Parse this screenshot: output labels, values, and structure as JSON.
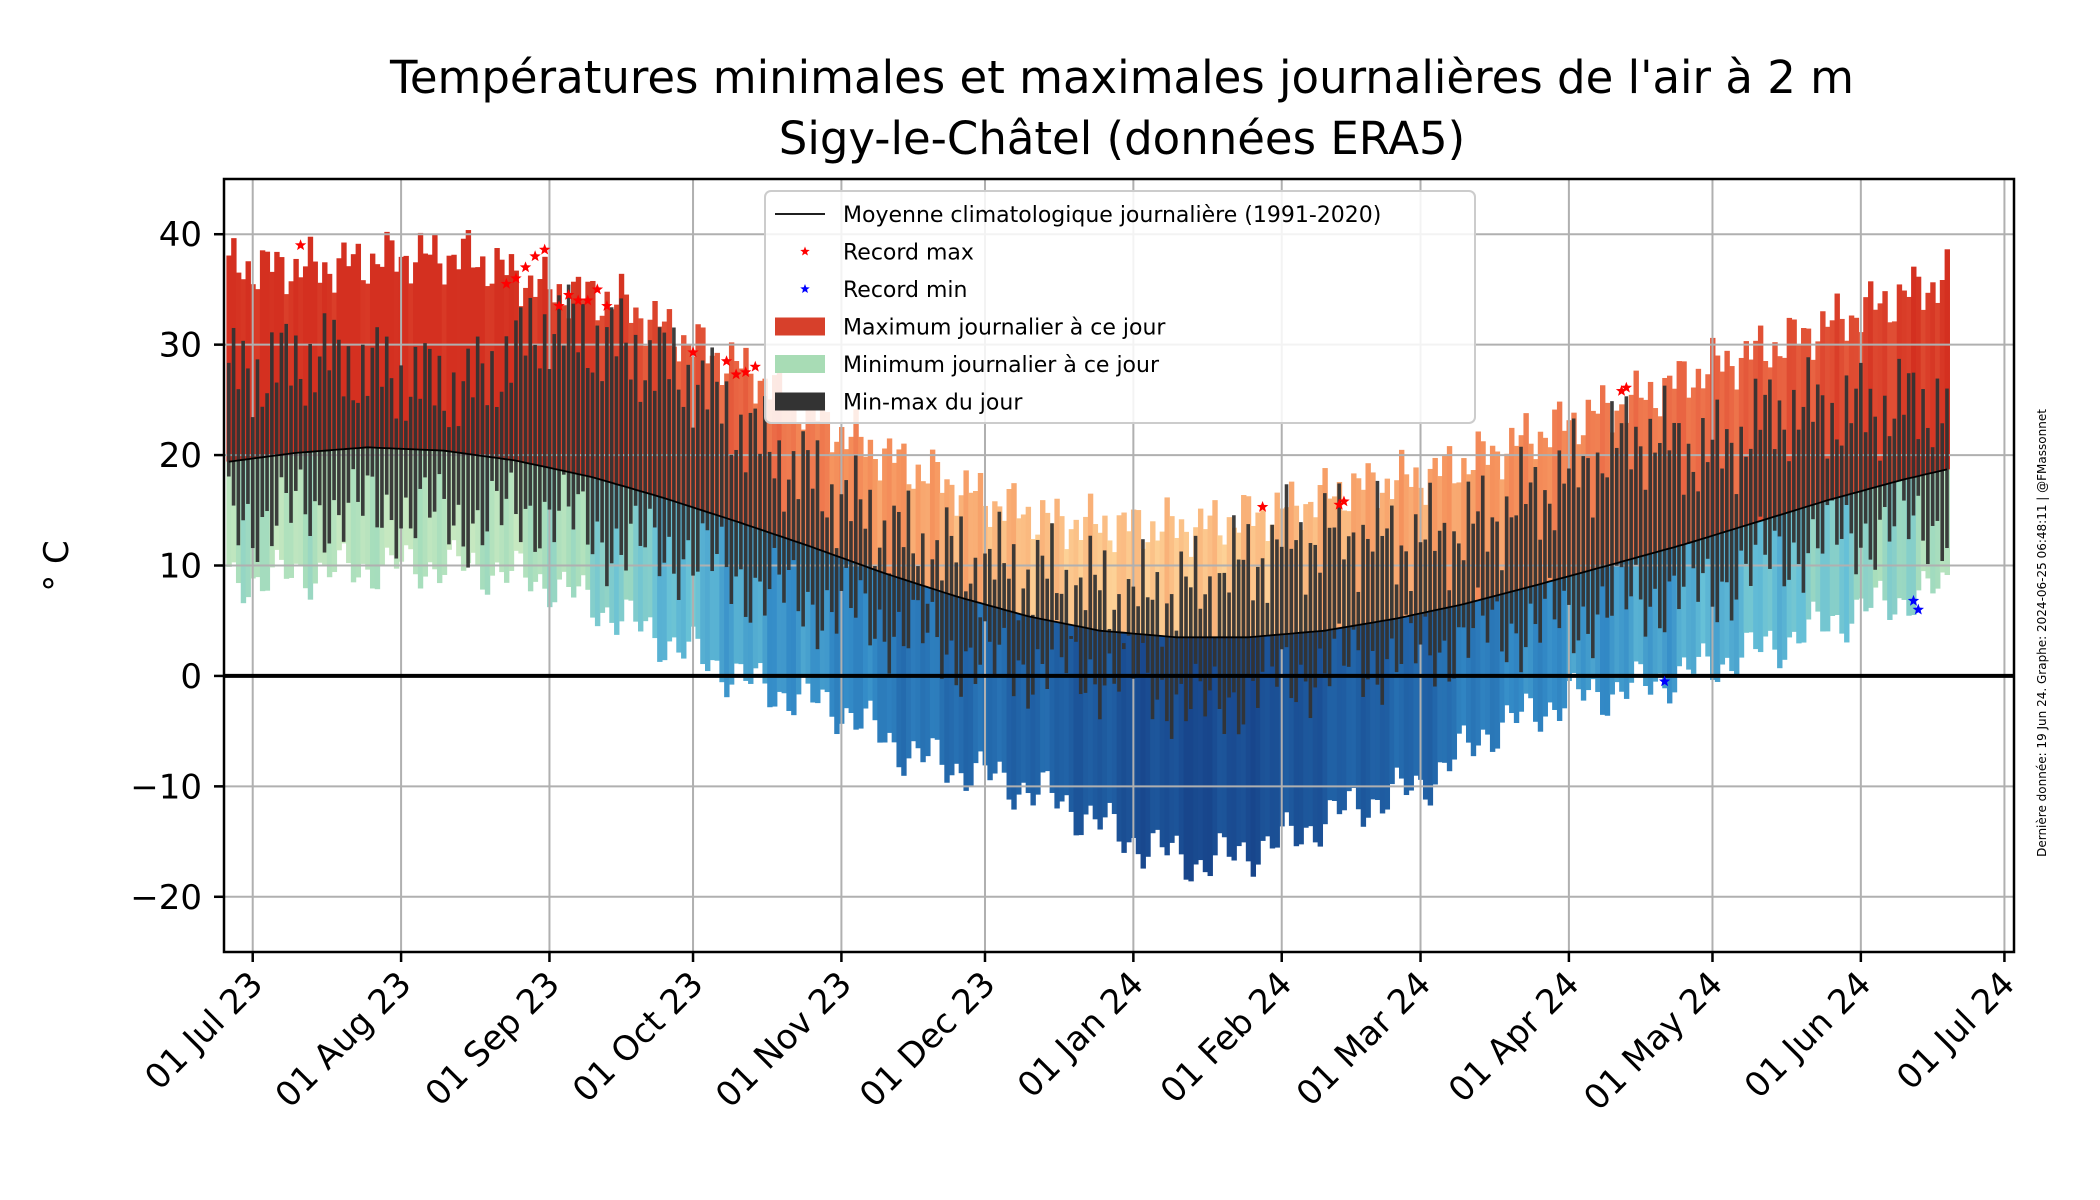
{
  "chart_data": {
    "type": "bar",
    "title": "Températures minimales et maximales journalières de l'air à 2 m",
    "subtitle": "Sigy-le-Châtel (données ERA5)",
    "ylabel": "° C",
    "ylim": [
      -25,
      45
    ],
    "yticks": [
      -20,
      -10,
      0,
      10,
      20,
      30,
      40
    ],
    "ytick_labels": [
      "−20",
      "−10",
      "0",
      "10",
      "20",
      "30",
      "40"
    ],
    "xlim": [
      "2023-06-25",
      "2024-07-03"
    ],
    "xticks": [
      "2023-07-01",
      "2023-08-01",
      "2023-09-01",
      "2023-10-01",
      "2023-11-01",
      "2023-12-01",
      "2024-01-01",
      "2024-02-01",
      "2024-03-01",
      "2024-04-01",
      "2024-05-01",
      "2024-06-01",
      "2024-07-01"
    ],
    "xtick_labels": [
      "01 Jul 23",
      "01 Aug 23",
      "01 Sep 23",
      "01 Oct 23",
      "01 Nov 23",
      "01 Dec 23",
      "01 Jan 24",
      "01 Feb 24",
      "01 Mar 24",
      "01 Apr 24",
      "01 May 24",
      "01 Jun 24",
      "01 Jul 24"
    ],
    "grid": true,
    "legend_position": "top-center",
    "legend": [
      {
        "label": "Moyenne climatologique journalière (1991-2020)",
        "kind": "line",
        "color": "#000000"
      },
      {
        "label": "Record max",
        "kind": "star",
        "color": "#ff0000"
      },
      {
        "label": "Record min",
        "kind": "star",
        "color": "#0000ff"
      },
      {
        "label": "Maximum journalier à ce jour",
        "kind": "patch",
        "color": "#d7402b"
      },
      {
        "label": "Minimum journalier à ce jour",
        "kind": "patch",
        "color": "#a8dcb5"
      },
      {
        "label": "Min-max du jour",
        "kind": "patch",
        "color": "#333333"
      }
    ],
    "credit": "Dernière donnée: 19 Jun 24. Graphe: 2024-06-25 06:48:11 | @FMassonnet",
    "period": {
      "start": "2023-06-26",
      "end": "2024-06-19"
    },
    "series": [
      {
        "name": "Moyenne climatologique journalière (1991-2020)",
        "type": "line",
        "x": [
          "2023-06-26",
          "2023-07-10",
          "2023-07-25",
          "2023-08-10",
          "2023-08-25",
          "2023-09-10",
          "2023-09-25",
          "2023-10-10",
          "2023-10-25",
          "2023-11-10",
          "2023-11-25",
          "2023-12-10",
          "2023-12-25",
          "2024-01-10",
          "2024-01-25",
          "2024-02-10",
          "2024-02-25",
          "2024-03-10",
          "2024-03-25",
          "2024-04-10",
          "2024-04-25",
          "2024-05-10",
          "2024-05-25",
          "2024-06-10",
          "2024-06-19"
        ],
        "values": [
          19.4,
          20.2,
          20.7,
          20.4,
          19.5,
          18.0,
          16.1,
          14.0,
          11.8,
          9.3,
          7.2,
          5.4,
          4.1,
          3.5,
          3.5,
          4.1,
          5.2,
          6.5,
          8.2,
          10.1,
          11.9,
          13.9,
          15.9,
          17.8,
          18.7
        ]
      },
      {
        "name": "Maximum journalier à ce jour",
        "type": "envelope",
        "x": [
          "2023-06-26",
          "2023-07-15",
          "2023-08-01",
          "2023-08-15",
          "2023-09-01",
          "2023-09-15",
          "2023-10-01",
          "2023-10-15",
          "2023-11-01",
          "2023-11-15",
          "2023-12-01",
          "2023-12-15",
          "2024-01-01",
          "2024-01-15",
          "2024-02-01",
          "2024-02-15",
          "2024-03-01",
          "2024-03-15",
          "2024-04-01",
          "2024-04-15",
          "2024-05-01",
          "2024-05-15",
          "2024-06-01",
          "2024-06-19"
        ],
        "values": [
          37,
          37,
          38,
          38,
          35,
          34,
          30,
          27,
          22,
          19,
          16,
          14,
          13.5,
          13.5,
          15,
          17,
          18,
          20,
          23,
          25,
          28,
          30,
          33,
          36
        ]
      },
      {
        "name": "Minimum journalier à ce jour",
        "type": "envelope",
        "x": [
          "2023-06-26",
          "2023-07-15",
          "2023-08-01",
          "2023-08-15",
          "2023-09-01",
          "2023-09-15",
          "2023-10-01",
          "2023-10-15",
          "2023-11-01",
          "2023-11-15",
          "2023-12-01",
          "2023-12-15",
          "2024-01-01",
          "2024-01-15",
          "2024-02-01",
          "2024-02-15",
          "2024-03-01",
          "2024-03-15",
          "2024-04-01",
          "2024-04-15",
          "2024-05-01",
          "2024-05-15",
          "2024-06-01",
          "2024-06-19"
        ],
        "values": [
          8.5,
          9.5,
          10,
          10,
          8.5,
          5.5,
          2,
          -1,
          -3,
          -7,
          -9,
          -11,
          -15,
          -17,
          -15,
          -12,
          -10,
          -5,
          -2,
          -1,
          1,
          3,
          6,
          8
        ]
      },
      {
        "name": "Min-max du jour",
        "type": "range",
        "x": [
          "2023-06-26",
          "2023-07-15",
          "2023-08-01",
          "2023-08-15",
          "2023-09-01",
          "2023-09-15",
          "2023-10-01",
          "2023-10-15",
          "2023-11-01",
          "2023-11-15",
          "2023-12-01",
          "2023-12-15",
          "2024-01-01",
          "2024-01-15",
          "2024-02-01",
          "2024-02-15",
          "2024-03-01",
          "2024-03-15",
          "2024-04-01",
          "2024-04-15",
          "2024-05-01",
          "2024-05-15",
          "2024-06-01",
          "2024-06-19"
        ],
        "low": [
          14,
          15,
          15,
          14,
          15,
          12,
          11,
          8,
          6,
          4,
          1,
          1,
          0,
          -3,
          0,
          1,
          2,
          4,
          5,
          7,
          8,
          11,
          13,
          14
        ],
        "high": [
          27,
          29,
          27,
          26,
          32,
          30,
          27,
          21,
          16,
          12,
          10,
          9,
          7,
          8,
          12,
          13,
          12,
          14,
          18,
          22,
          20,
          24,
          24,
          25
        ]
      }
    ],
    "record_max": {
      "x": [
        "2023-07-11",
        "2023-08-23",
        "2023-08-25",
        "2023-08-27",
        "2023-08-29",
        "2023-08-31",
        "2023-09-03",
        "2023-09-05",
        "2023-09-07",
        "2023-09-09",
        "2023-09-11",
        "2023-09-13",
        "2023-10-01",
        "2023-10-08",
        "2023-10-10",
        "2023-10-12",
        "2023-10-14",
        "2024-01-28",
        "2024-02-13",
        "2024-02-14",
        "2024-04-12",
        "2024-04-13"
      ],
      "values": [
        39,
        35.5,
        36,
        37,
        38,
        38.6,
        33.5,
        34.5,
        34,
        34,
        35,
        33.5,
        29.3,
        28.5,
        27.3,
        27.5,
        28,
        15.3,
        15.5,
        15.8,
        25.8,
        26.1
      ]
    },
    "record_min": {
      "x": [
        "2024-04-21",
        "2024-06-12",
        "2024-06-13"
      ],
      "values": [
        -0.5,
        6.8,
        6
      ]
    }
  }
}
